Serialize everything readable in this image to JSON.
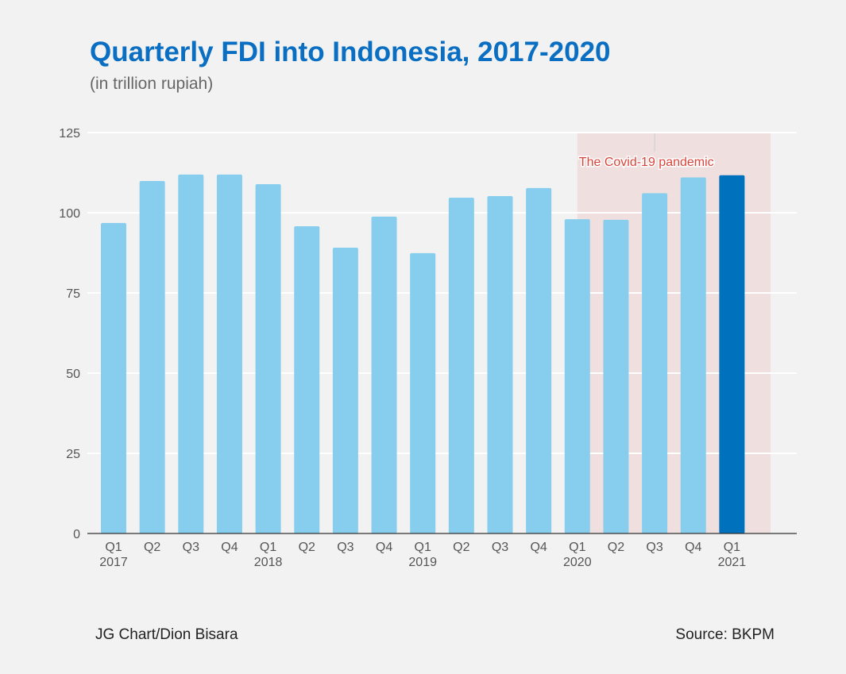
{
  "chart_data": {
    "type": "bar",
    "title": "Quarterly FDI into Indonesia, 2017-2020",
    "subtitle": "(in trillion rupiah)",
    "xlabel": "",
    "ylabel": "",
    "ylim": [
      0,
      125
    ],
    "yticks": [
      0,
      25,
      50,
      75,
      100,
      125
    ],
    "grid": true,
    "categories": [
      {
        "q": "Q1",
        "year": "2017"
      },
      {
        "q": "Q2",
        "year": ""
      },
      {
        "q": "Q3",
        "year": ""
      },
      {
        "q": "Q4",
        "year": ""
      },
      {
        "q": "Q1",
        "year": "2018"
      },
      {
        "q": "Q2",
        "year": ""
      },
      {
        "q": "Q3",
        "year": ""
      },
      {
        "q": "Q4",
        "year": ""
      },
      {
        "q": "Q1",
        "year": "2019"
      },
      {
        "q": "Q2",
        "year": ""
      },
      {
        "q": "Q3",
        "year": ""
      },
      {
        "q": "Q4",
        "year": ""
      },
      {
        "q": "Q1",
        "year": "2020"
      },
      {
        "q": "Q2",
        "year": ""
      },
      {
        "q": "Q3",
        "year": ""
      },
      {
        "q": "Q4",
        "year": ""
      },
      {
        "q": "Q1",
        "year": "2021"
      }
    ],
    "values": [
      96.8,
      109.9,
      111.9,
      111.9,
      108.9,
      95.8,
      89.1,
      98.8,
      87.4,
      104.7,
      105.2,
      107.7,
      98.0,
      97.8,
      106.1,
      111.0,
      111.7
    ],
    "highlight_index": 16,
    "annotation": {
      "text": "The Covid-19 pandemic",
      "start_index": 12,
      "end_index": 17,
      "marker_index": 14
    },
    "colors": {
      "bar": "#87ceee",
      "highlight": "#0071bc",
      "shade": "#f0dfdf",
      "annotation_text": "#d9443a",
      "title": "#0a6fc2"
    }
  },
  "footer": {
    "credit": "JG Chart/Dion Bisara",
    "source": "Source: BKPM"
  }
}
